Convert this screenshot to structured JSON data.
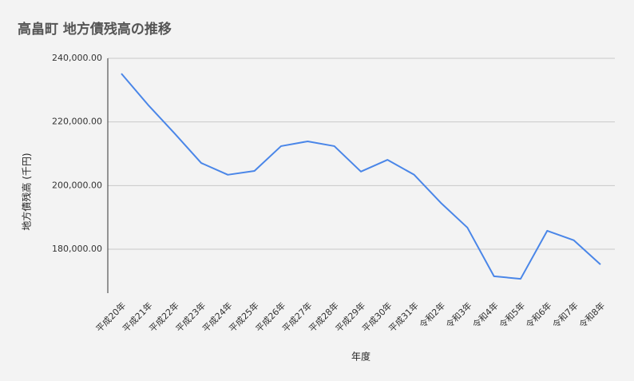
{
  "chart_data": {
    "type": "line",
    "title": "高畠町 地方債残高の推移",
    "x_label": "年度",
    "y_label": "地方債残高 (千円)",
    "categories": [
      "平成20年",
      "平成21年",
      "平成22年",
      "平成23年",
      "平成24年",
      "平成25年",
      "平成26年",
      "平成27年",
      "平成28年",
      "平成29年",
      "平成30年",
      "平成31年",
      "令和2年",
      "令和3年",
      "令和4年",
      "令和5年",
      "令和6年",
      "令和7年",
      "令和8年"
    ],
    "series": [
      {
        "name": "地方債残高",
        "color": "#4a86e8",
        "values": [
          235200,
          225400,
          216400,
          207100,
          203400,
          204600,
          212400,
          213900,
          212400,
          204400,
          208100,
          203400,
          194600,
          186800,
          171500,
          170700,
          185800,
          182800,
          175200
        ]
      }
    ],
    "ylim": [
      166200,
      240000
    ],
    "yticks": [
      {
        "value": 180000,
        "label": "180,000.00"
      },
      {
        "value": 200000,
        "label": "200,000.00"
      },
      {
        "value": 220000,
        "label": "220,000.00"
      },
      {
        "value": 240000,
        "label": "240,000.00"
      }
    ],
    "grid": true
  }
}
